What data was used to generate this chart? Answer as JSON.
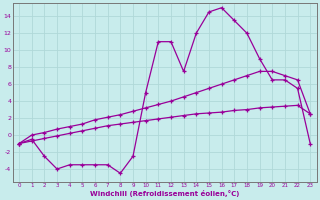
{
  "xlabel": "Windchill (Refroidissement éolien,°C)",
  "xlim": [
    -0.5,
    23.5
  ],
  "ylim": [
    -5.5,
    15.5
  ],
  "xticks": [
    0,
    1,
    2,
    3,
    4,
    5,
    6,
    7,
    8,
    9,
    10,
    11,
    12,
    13,
    14,
    15,
    16,
    17,
    18,
    19,
    20,
    21,
    22,
    23
  ],
  "yticks": [
    -4,
    -2,
    0,
    2,
    4,
    6,
    8,
    10,
    12,
    14
  ],
  "bg_color": "#c8ecec",
  "line_color": "#990099",
  "grid_color": "#b0d8d8",
  "line1_x": [
    0,
    1,
    2,
    3,
    4,
    5,
    6,
    7,
    8,
    9,
    10,
    11,
    12,
    13,
    14,
    15,
    16,
    17,
    18,
    19,
    20,
    21,
    22,
    23
  ],
  "line1_y": [
    -1.0,
    -0.5,
    -2.5,
    -4.0,
    -3.5,
    -3.5,
    -3.5,
    -3.5,
    -4.5,
    -2.5,
    5.0,
    11.0,
    11.0,
    7.5,
    12.0,
    14.5,
    15.0,
    13.5,
    12.0,
    9.0,
    6.5,
    6.5,
    5.5,
    -1.0
  ],
  "line2_x": [
    0,
    1,
    2,
    3,
    4,
    5,
    6,
    7,
    8,
    9,
    10,
    11,
    12,
    13,
    14,
    15,
    16,
    17,
    18,
    19,
    20,
    21,
    22,
    23
  ],
  "line2_y": [
    -1.0,
    0.0,
    0.3,
    0.7,
    1.0,
    1.3,
    1.8,
    2.1,
    2.4,
    2.8,
    3.2,
    3.6,
    4.0,
    4.5,
    5.0,
    5.5,
    6.0,
    6.5,
    7.0,
    7.5,
    7.5,
    7.0,
    6.5,
    2.5
  ],
  "line3_x": [
    0,
    1,
    2,
    3,
    4,
    5,
    6,
    7,
    8,
    9,
    10,
    11,
    12,
    13,
    14,
    15,
    16,
    17,
    18,
    19,
    20,
    21,
    22,
    23
  ],
  "line3_y": [
    -1.0,
    -0.7,
    -0.4,
    -0.1,
    0.2,
    0.5,
    0.8,
    1.1,
    1.3,
    1.5,
    1.7,
    1.9,
    2.1,
    2.3,
    2.5,
    2.6,
    2.7,
    2.9,
    3.0,
    3.2,
    3.3,
    3.4,
    3.5,
    2.5
  ]
}
